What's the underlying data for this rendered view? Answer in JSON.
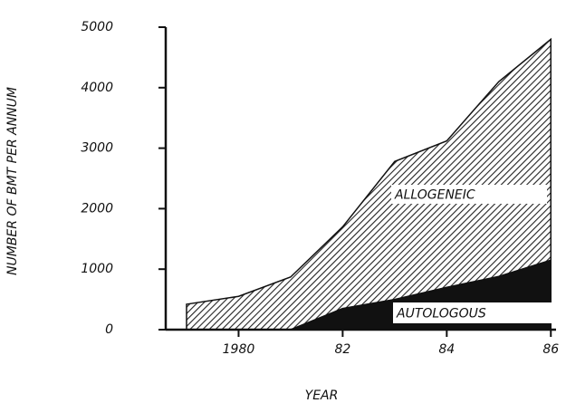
{
  "chart_data": {
    "type": "area",
    "stacked": true,
    "x": [
      1979,
      1980,
      1981,
      1982,
      1983,
      1984,
      1985,
      1986
    ],
    "series": [
      {
        "name": "AUTOLOGOUS",
        "color": "#111111",
        "values": [
          0,
          0,
          0,
          350,
          500,
          700,
          880,
          1150
        ]
      },
      {
        "name": "ALLOGENEIC",
        "color": "#333333",
        "hatched": true,
        "values": [
          420,
          550,
          870,
          1350,
          2280,
          2420,
          3220,
          3650
        ]
      }
    ],
    "xlabel": "YEAR",
    "ylabel": "NUMBER OF BMT PER ANNUM",
    "xlim": [
      1978.6,
      1986.1
    ],
    "ylim": [
      0,
      5000
    ],
    "xticks": [
      1980,
      {
        "value": 1982,
        "label": "82"
      },
      {
        "value": 1984,
        "label": "84"
      },
      {
        "value": 1986,
        "label": "86"
      }
    ],
    "yticks": [
      0,
      1000,
      2000,
      3000,
      4000,
      5000
    ]
  }
}
